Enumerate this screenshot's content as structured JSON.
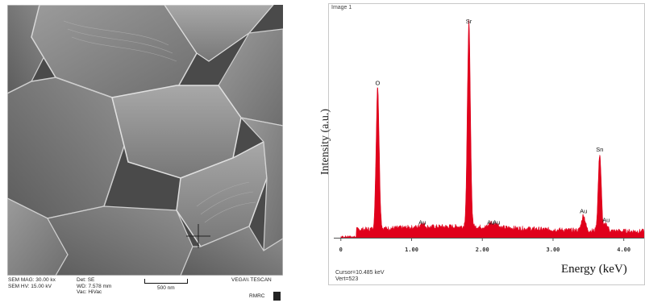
{
  "sem": {
    "mag": "SEM MAG: 30.00 kx",
    "hv": "SEM HV: 15.00 kV",
    "det": "Det: SE",
    "wd": "WD: 7.578 mm",
    "vac": "Vac: HiVac",
    "scale_label": "500 nm",
    "brand": "VEGA\\\\ TESCAN",
    "lab": "RMRC"
  },
  "eds": {
    "frame_title": "Image 1",
    "cursor": "Cursor=10.485 keV",
    "vert": "Vert=523",
    "spectrum_color": "#e0001b"
  },
  "chart_data": {
    "type": "area",
    "xlabel": "Energy (keV)",
    "ylabel": "Intensity (a.u.)",
    "xlim": [
      -0.1,
      4.3
    ],
    "ylim": [
      0,
      1.0
    ],
    "xticks": [
      0,
      1,
      2,
      3,
      4
    ],
    "xtick_labels": [
      "0",
      "1.00",
      "2.00",
      "3.00",
      "4.00"
    ],
    "peaks": [
      {
        "label": "O",
        "energy": 0.52,
        "intensity": 0.65
      },
      {
        "label": "Sr",
        "energy": 1.81,
        "intensity": 0.93
      },
      {
        "label": "Au",
        "energy": 1.15,
        "intensity": 0.02
      },
      {
        "label": "Au",
        "energy": 2.12,
        "intensity": 0.02
      },
      {
        "label": "Au",
        "energy": 2.2,
        "intensity": 0.02
      },
      {
        "label": "Au",
        "energy": 3.43,
        "intensity": 0.07
      },
      {
        "label": "Sn",
        "energy": 3.66,
        "intensity": 0.35
      },
      {
        "label": "Au",
        "energy": 3.75,
        "intensity": 0.03
      }
    ]
  }
}
